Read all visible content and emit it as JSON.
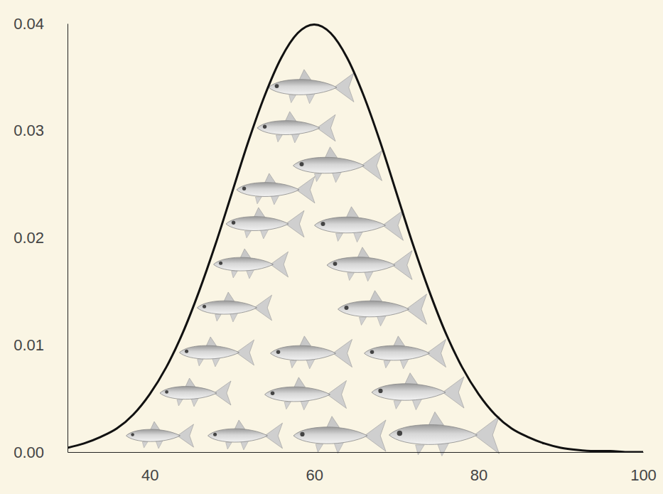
{
  "chart_data": {
    "type": "line",
    "x": [
      30,
      32,
      34,
      36,
      38,
      40,
      42,
      44,
      46,
      48,
      50,
      52,
      54,
      56,
      58,
      60,
      62,
      64,
      66,
      68,
      70,
      72,
      74,
      76,
      78,
      80,
      82,
      84,
      86,
      88,
      90,
      92,
      94,
      96,
      98,
      100
    ],
    "values": [
      0.0004,
      0.0008,
      0.0014,
      0.0022,
      0.0035,
      0.0054,
      0.0079,
      0.0111,
      0.015,
      0.0194,
      0.0242,
      0.029,
      0.0333,
      0.0368,
      0.0391,
      0.0399,
      0.0391,
      0.0368,
      0.0333,
      0.029,
      0.0242,
      0.0194,
      0.015,
      0.0111,
      0.0079,
      0.0054,
      0.0035,
      0.0022,
      0.0014,
      0.0008,
      0.0004,
      0.0002,
      0.0001,
      0.0001,
      0,
      0
    ],
    "color": "#111111",
    "xlim": [
      30,
      100
    ],
    "xticks": [
      40,
      60,
      80,
      100
    ],
    "ylim": [
      0,
      0.04
    ],
    "yticks": [
      {
        "value": 0,
        "label": "0.00"
      },
      0.01,
      0.02,
      0.03,
      0.04
    ],
    "grid": false
  }
}
